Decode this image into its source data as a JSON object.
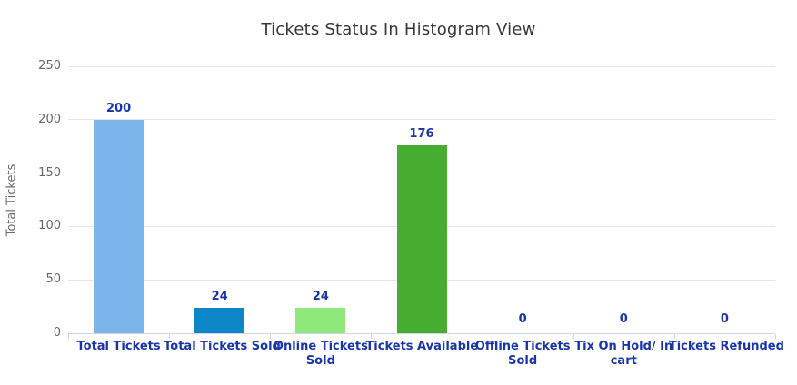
{
  "chart_data": {
    "type": "bar",
    "title": "Tickets Status In Histogram View",
    "xlabel": "",
    "ylabel": "Total Tickets",
    "ylim": [
      0,
      250
    ],
    "y_tick_interval": 50,
    "y_tick_labels": [
      "0",
      "50",
      "100",
      "150",
      "200",
      "250"
    ],
    "grid": "horizontal",
    "legend": "none",
    "categories": [
      "Total Tickets",
      "Total Tickets Sold",
      "Online Tickets Sold",
      "Tickets Available",
      "Offline Tickets Sold",
      "Tix On Hold/ In cart",
      "Tickets Refunded"
    ],
    "category_lines": [
      [
        "Total Tickets"
      ],
      [
        "Total Tickets Sold"
      ],
      [
        "Online Tickets",
        "Sold"
      ],
      [
        "Tickets Available"
      ],
      [
        "Offline Tickets",
        "Sold"
      ],
      [
        "Tix On Hold/ In",
        "cart"
      ],
      [
        "Tickets Refunded"
      ]
    ],
    "values": [
      200,
      24,
      24,
      176,
      0,
      0,
      0
    ],
    "value_labels": [
      "200",
      "24",
      "24",
      "176",
      "0",
      "0",
      "0"
    ],
    "bar_colors": [
      "#7cb5ec",
      "#0c86c6",
      "#90e87d",
      "#47ad30",
      null,
      null,
      null
    ],
    "colors": {
      "title_text": "#33383e",
      "axis_text": "#666666",
      "data_label_text": "#1a35a5",
      "gridline": "#e6e6e6",
      "axis_line": "#ccd6eb"
    }
  }
}
